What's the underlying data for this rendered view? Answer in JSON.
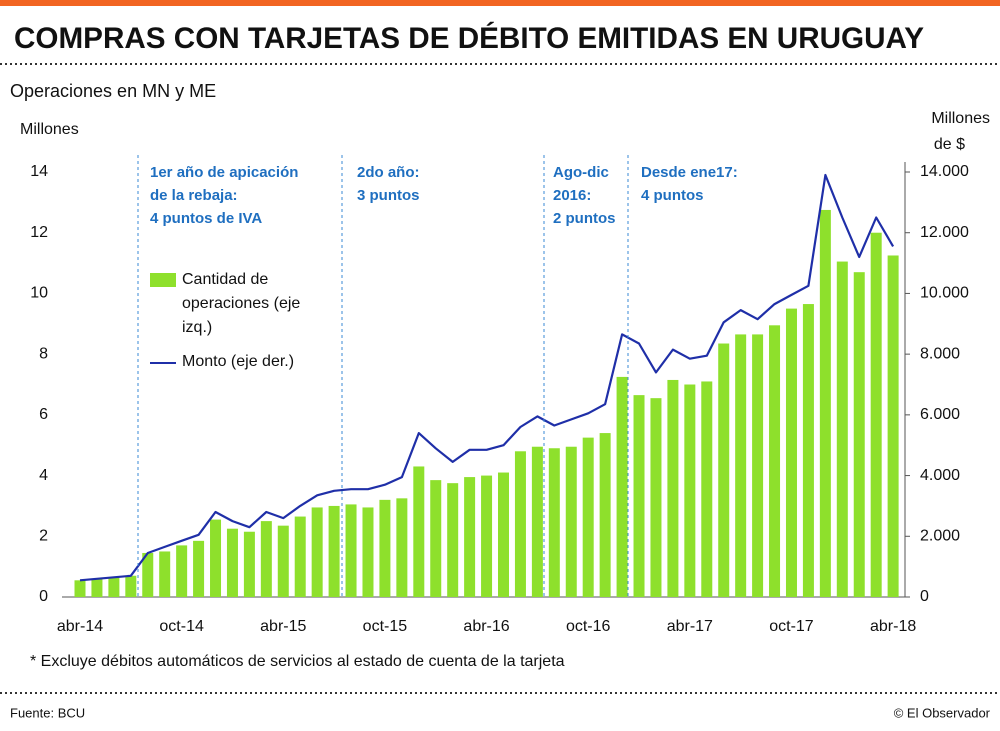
{
  "chart_data": {
    "type": "bar_line",
    "title": "COMPRAS CON TARJETAS DE DÉBITO EMITIDAS EN URUGUAY",
    "subtitle": "Operaciones en MN y ME",
    "ylabel": "Millones",
    "y2label": [
      "Millones",
      "de $"
    ],
    "categories": [
      "abr-14",
      null,
      null,
      null,
      null,
      null,
      "oct-14",
      null,
      null,
      null,
      null,
      null,
      "abr-15",
      null,
      null,
      null,
      null,
      null,
      "oct-15",
      null,
      null,
      null,
      null,
      null,
      "abr-16",
      null,
      null,
      null,
      null,
      null,
      "oct-16",
      null,
      null,
      null,
      null,
      null,
      "abr-17",
      null,
      null,
      null,
      null,
      null,
      "oct-17",
      null,
      null,
      null,
      null,
      null,
      "abr-18"
    ],
    "series": [
      {
        "name": "Cantidad de operaciones (eje izq.)",
        "type": "bar",
        "color": "#8ee02c",
        "values": [
          0.55,
          0.6,
          0.65,
          0.7,
          1.45,
          1.5,
          1.7,
          1.85,
          2.55,
          2.25,
          2.15,
          2.5,
          2.35,
          2.65,
          2.95,
          3.0,
          3.05,
          2.95,
          3.2,
          3.25,
          4.3,
          3.85,
          3.75,
          3.95,
          4.0,
          4.1,
          4.8,
          4.95,
          4.9,
          4.95,
          5.25,
          5.4,
          7.25,
          6.65,
          6.55,
          7.15,
          7.0,
          7.1,
          8.35,
          8.65,
          8.65,
          8.95,
          9.5,
          9.65,
          12.75,
          11.05,
          10.7,
          12.0,
          11.25
        ]
      },
      {
        "name": "Monto (eje der.)",
        "type": "line",
        "axis": "y2",
        "color": "#1f2fa8",
        "values": [
          550,
          600,
          650,
          700,
          1450,
          1650,
          1850,
          2050,
          2800,
          2500,
          2300,
          2800,
          2600,
          3000,
          3350,
          3500,
          3550,
          3550,
          3700,
          3950,
          5400,
          4900,
          4450,
          4850,
          4850,
          5000,
          5600,
          5950,
          5650,
          5850,
          6050,
          6350,
          8650,
          8350,
          7400,
          8150,
          7850,
          7950,
          9050,
          9450,
          9150,
          9650,
          9950,
          10250,
          13900,
          12500,
          11200,
          12500,
          11550
        ]
      }
    ],
    "ylim": [
      0,
      14
    ],
    "yticks": [
      0,
      2,
      4,
      6,
      8,
      10,
      12,
      14
    ],
    "y2lim": [
      0,
      14000
    ],
    "y2ticks": [
      0,
      {
        "value": 2000,
        "label": "2.000"
      },
      {
        "value": 4000,
        "label": "4.000"
      },
      {
        "value": 6000,
        "label": "6.000"
      },
      {
        "value": 8000,
        "label": "8.000"
      },
      {
        "value": 10000,
        "label": "10.000"
      },
      {
        "value": 12000,
        "label": "12.000"
      },
      {
        "value": 14000,
        "label": "14.000"
      }
    ],
    "annotations": [
      [
        "1er año de apicación",
        "de la rebaja:",
        "4 puntos de IVA"
      ],
      [
        "2do año:",
        "3 puntos"
      ],
      [
        "Ago-dic",
        "2016:",
        "2 puntos"
      ],
      [
        "Desde ene17:",
        "4 puntos"
      ]
    ],
    "footnote": "* Excluye débitos automáticos de servicios al estado de cuenta de la tarjeta",
    "source": "Fuente: BCU",
    "credit": "© El Observador"
  }
}
